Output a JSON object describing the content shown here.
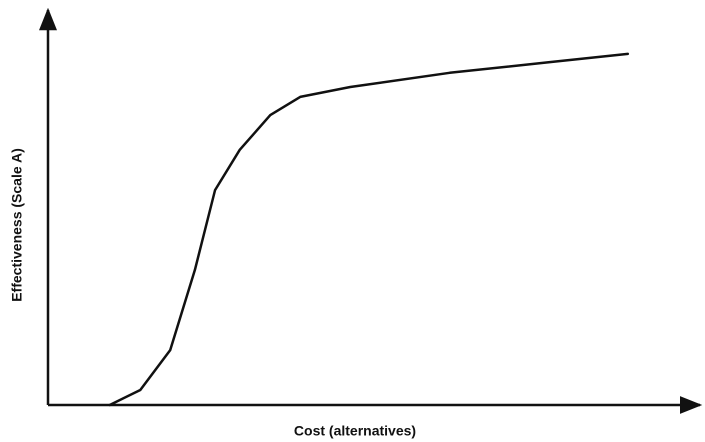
{
  "chart_data": {
    "type": "line",
    "x_label": "Cost (alternatives)",
    "y_label": "Effectiveness (Scale A)",
    "x": [
      9.5,
      14.2,
      18.8,
      22.6,
      25.7,
      29.5,
      34.2,
      38.8,
      46.5,
      61.8,
      77.2,
      89.2
    ],
    "series": [
      {
        "color": "#111111",
        "values": [
          0,
          3.8,
          13.9,
          34.2,
          54.4,
          64.6,
          73.4,
          78.0,
          80.5,
          84.1,
          86.8,
          88.9
        ]
      }
    ],
    "xlim": [
      0,
      100
    ],
    "ylim": [
      0,
      100
    ]
  }
}
